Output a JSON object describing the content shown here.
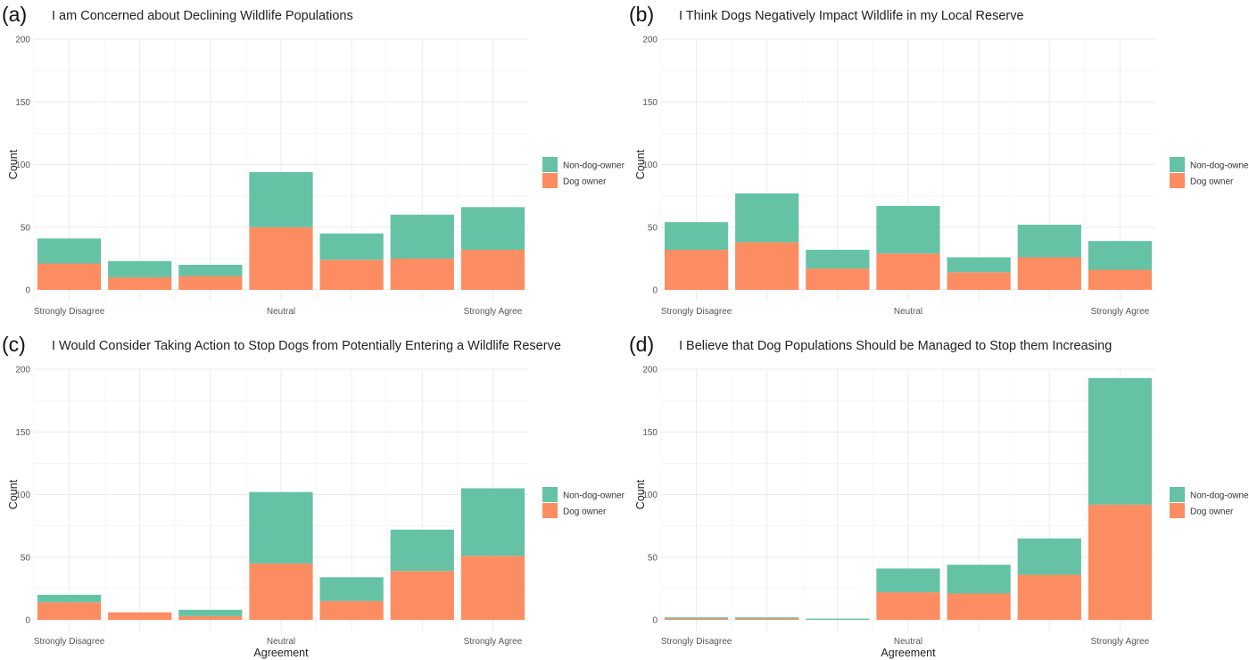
{
  "legend": {
    "labels": [
      "Non-dog-owner",
      "Dog owner"
    ]
  },
  "colors": {
    "non_dog_owner": "#66c2a5",
    "dog_owner": "#fc8d62"
  },
  "chart_data": [
    {
      "type": "bar",
      "stacked": true,
      "letter": "(a)",
      "title": "I am Concerned about Declining Wildlife Populations",
      "categories": [
        "Strongly Disagree",
        "",
        "",
        "Neutral",
        "",
        "",
        "Strongly Agree"
      ],
      "series": [
        {
          "name": "Dog owner",
          "values": [
            21,
            10,
            11,
            50,
            24,
            25,
            32
          ]
        },
        {
          "name": "Non-dog-owner",
          "values": [
            20,
            13,
            9,
            44,
            21,
            35,
            34
          ]
        }
      ],
      "ylabel": "Count",
      "xlabel": "",
      "yticks": [
        0,
        50,
        100,
        150,
        200
      ],
      "ylim": [
        0,
        200
      ],
      "legend_position": "right"
    },
    {
      "type": "bar",
      "stacked": true,
      "letter": "(b)",
      "title": "I Think Dogs Negatively Impact Wildlife in my Local Reserve",
      "categories": [
        "Strongly Disagree",
        "",
        "",
        "Neutral",
        "",
        "",
        "Strongly Agree"
      ],
      "series": [
        {
          "name": "Dog owner",
          "values": [
            32,
            38,
            17,
            29,
            14,
            26,
            16
          ]
        },
        {
          "name": "Non-dog-owner",
          "values": [
            22,
            39,
            15,
            38,
            12,
            26,
            23
          ]
        }
      ],
      "ylabel": "Count",
      "xlabel": "",
      "yticks": [
        0,
        50,
        100,
        150,
        200
      ],
      "ylim": [
        0,
        200
      ],
      "legend_position": "right"
    },
    {
      "type": "bar",
      "stacked": true,
      "letter": "(c)",
      "title": "I Would Consider Taking Action to Stop Dogs from Potentially Entering a Wildlife Reserve",
      "categories": [
        "Strongly Disagree",
        "",
        "",
        "Neutral",
        "",
        "",
        "Strongly Agree"
      ],
      "series": [
        {
          "name": "Dog owner",
          "values": [
            14,
            6,
            3,
            45,
            15,
            39,
            51
          ]
        },
        {
          "name": "Non-dog-owner",
          "values": [
            6,
            0,
            5,
            57,
            19,
            33,
            54
          ]
        }
      ],
      "ylabel": "Count",
      "xlabel": "Agreement",
      "yticks": [
        0,
        50,
        100,
        150,
        200
      ],
      "ylim": [
        0,
        200
      ],
      "legend_position": "right"
    },
    {
      "type": "bar",
      "stacked": true,
      "letter": "(d)",
      "title": "I Believe that Dog Populations Should be Managed to Stop them Increasing",
      "categories": [
        "Strongly Disagree",
        "",
        "",
        "Neutral",
        "",
        "",
        "Strongly Agree"
      ],
      "series": [
        {
          "name": "Dog owner",
          "values": [
            1,
            1,
            0,
            22,
            21,
            36,
            92
          ]
        },
        {
          "name": "Non-dog-owner",
          "values": [
            1,
            1,
            1,
            19,
            23,
            29,
            101
          ]
        }
      ],
      "ylabel": "Count",
      "xlabel": "Agreement",
      "yticks": [
        0,
        50,
        100,
        150,
        200
      ],
      "ylim": [
        0,
        200
      ],
      "legend_position": "right"
    }
  ]
}
